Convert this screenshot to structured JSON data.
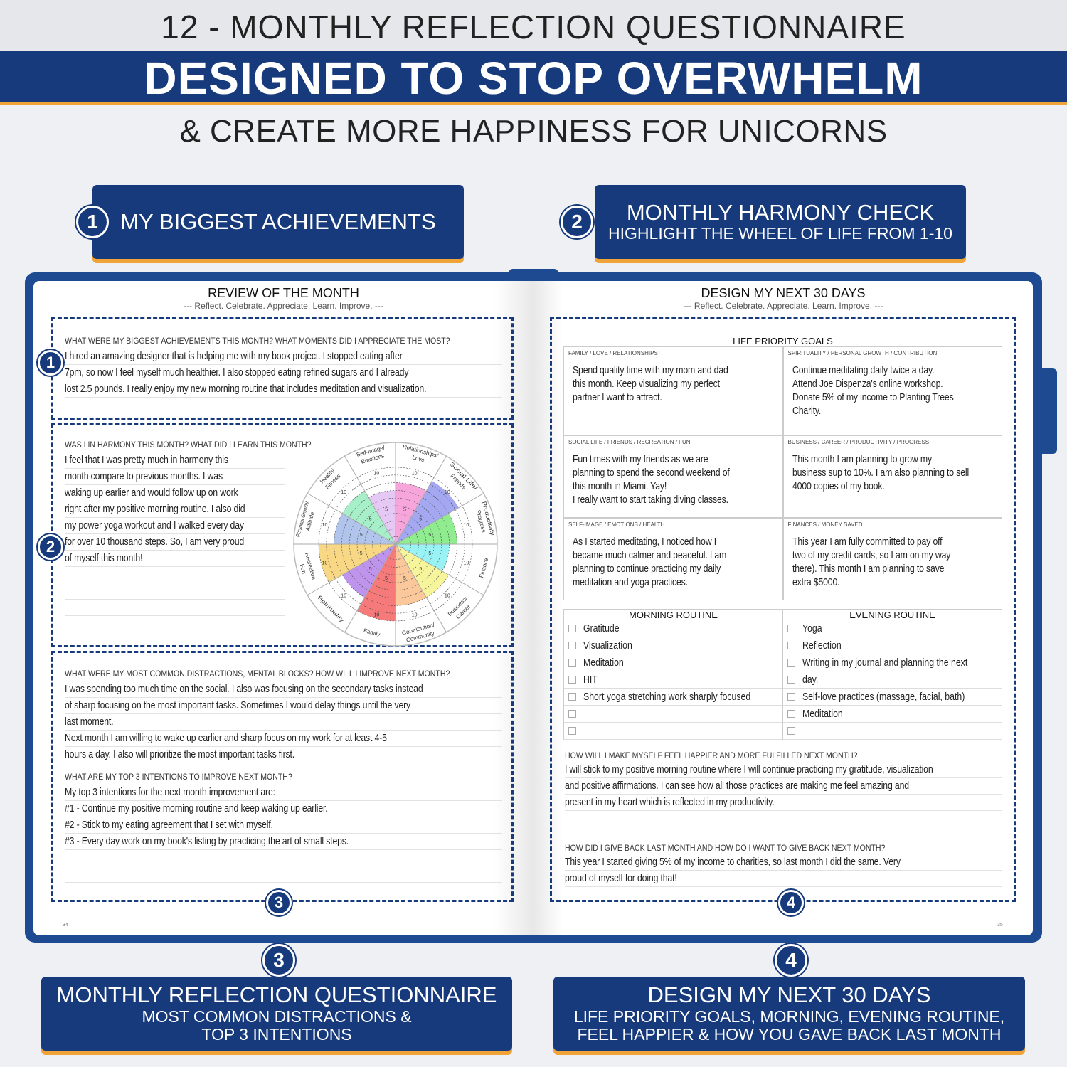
{
  "header": {
    "top_title": "12 - MONTHLY REFLECTION QUESTIONNAIRE",
    "banner": "DESIGNED TO STOP OVERWHELM",
    "subtitle": "& CREATE MORE HAPPINESS FOR UNICORNS"
  },
  "callouts": [
    {
      "number": "1",
      "title": "MY BIGGEST ACHIEVEMENTS"
    },
    {
      "number": "2",
      "title": "MONTHLY HARMONY CHECK",
      "subtitle": "HIGHLIGHT THE WHEEL OF LIFE FROM 1-10"
    },
    {
      "number": "3",
      "title": "MONTHLY REFLECTION QUESTIONNAIRE",
      "subtitle": "MOST COMMON DISTRACTIONS &",
      "subtitle2": "TOP 3 INTENTIONS"
    },
    {
      "number": "4",
      "title": "DESIGN MY NEXT 30 DAYS",
      "subtitle": "LIFE PRIORITY GOALS, MORNING, EVENING ROUTINE,",
      "subtitle2": "FEEL HAPPIER & HOW YOU GAVE BACK LAST MONTH"
    }
  ],
  "left_page": {
    "title": "REVIEW OF THE MONTH",
    "tagline": "--- Reflect. Celebrate. Appreciate. Learn. Improve. ---",
    "page_number": "34",
    "achievements": {
      "question": "WHAT WERE MY BIGGEST ACHIEVEMENTS THIS MONTH? WHAT MOMENTS DID I APPRECIATE THE MOST?",
      "lines": [
        "I hired an amazing designer that is helping me with my book project. I stopped eating after",
        "7pm, so now I feel myself much healthier. I also stopped eating refined sugars and I already",
        "lost 2.5 pounds. I really enjoy my new morning routine that includes meditation and visualization."
      ]
    },
    "harmony": {
      "question": "WAS I IN HARMONY THIS MONTH? WHAT DID I LEARN THIS MONTH?",
      "lines": [
        "I feel that I was pretty much in harmony this",
        "month compare to previous months. I was",
        "waking up earlier and would follow up on work",
        "right after my positive morning routine. I also did",
        "my power yoga workout and I walked every day",
        "for over 10 thousand steps. So, I am very proud",
        "of myself this month!"
      ]
    },
    "distractions": {
      "question": "WHAT WERE MY MOST COMMON DISTRACTIONS, MENTAL BLOCKS? HOW WILL I IMPROVE NEXT MONTH?",
      "lines": [
        "I was spending too much time on the social. I also was focusing on the secondary tasks instead",
        "of sharp focusing on the most important tasks. Sometimes I would delay things until the very",
        "last moment.",
        "Next month I am willing to wake up earlier and sharp focus on my work for at least 4-5",
        "hours a day. I also will prioritize the most important tasks first."
      ]
    },
    "intentions": {
      "question": "WHAT ARE MY TOP 3 INTENTIONS TO IMPROVE NEXT MONTH?",
      "lines": [
        "My top 3 intentions for the next month improvement are:",
        "#1 - Continue my positive morning routine and keep waking up earlier.",
        "#2 - Stick to my eating agreement that I set with myself.",
        "#3 - Every day work on my book's listing by practicing the art of small steps."
      ]
    }
  },
  "wheel": {
    "scale_labels": [
      "5",
      "10"
    ],
    "max": 10,
    "segments": [
      {
        "label": "Relationships/ Love",
        "level": 8,
        "color": "#f7a6dc"
      },
      {
        "label": "Social Life/ Friends",
        "level": 9.5,
        "color": "#a3a8f0"
      },
      {
        "label": "Productivity/ Progress",
        "level": 8,
        "color": "#8fec8f"
      },
      {
        "label": "Finance",
        "level": 7,
        "color": "#99f3f5"
      },
      {
        "label": "Business/ Career",
        "level": 8,
        "color": "#f7f59b"
      },
      {
        "label": "Contribution/ Community",
        "level": 8,
        "color": "#fbc89c"
      },
      {
        "label": "Family",
        "level": 10,
        "color": "#f77a7a"
      },
      {
        "label": "Spirituality",
        "level": 8,
        "color": "#bf94ec"
      },
      {
        "label": "Recreation/ Fun",
        "level": 10,
        "color": "#f8d884"
      },
      {
        "label": "Personal Growth/ Attitude",
        "level": 8,
        "color": "#b1c4ec"
      },
      {
        "label": "Health/ Fitness",
        "level": 8,
        "color": "#a6efc8"
      },
      {
        "label": "Self-Image/ Emotions",
        "level": 7,
        "color": "#e6c8f5"
      }
    ]
  },
  "right_page": {
    "title": "DESIGN MY NEXT 30 DAYS",
    "tagline": "--- Reflect. Celebrate. Appreciate. Learn. Improve. ---",
    "page_number": "35",
    "goals_title": "LIFE PRIORITY GOALS",
    "goals": [
      {
        "label": "FAMILY / LOVE / RELATIONSHIPS",
        "lines": [
          "Spend quality time with my mom and dad",
          "this month. Keep visualizing my perfect",
          "partner I want to attract."
        ]
      },
      {
        "label": "SPIRITUALITY / PERSONAL GROWTH / CONTRIBUTION",
        "lines": [
          "Continue meditating daily twice a day.",
          "Attend Joe Dispenza's online workshop.",
          "Donate 5% of my income to Planting Trees",
          "Charity."
        ]
      },
      {
        "label": "SOCIAL LIFE / FRIENDS / RECREATION / FUN",
        "lines": [
          "Fun times with my friends as we are",
          "planning to spend the second weekend of",
          "this month in Miami. Yay!",
          "I really want to start taking diving classes."
        ]
      },
      {
        "label": "BUSINESS / CAREER / PRODUCTIVITY / PROGRESS",
        "lines": [
          "This month I am planning to grow my",
          "business sup to 10%. I am also planning to sell",
          "4000 copies of my book."
        ]
      },
      {
        "label": "SELF-IMAGE / EMOTIONS / HEALTH",
        "lines": [
          "As I started meditating, I noticed how I",
          "became much calmer and peaceful. I am",
          "planning to continue practicing my daily",
          "meditation and yoga practices."
        ]
      },
      {
        "label": "FINANCES / MONEY SAVED",
        "lines": [
          "This year I am fully committed to pay off",
          "two of my credit cards, so I am on my way",
          "there). This month I am planning to save",
          "extra $5000."
        ]
      }
    ],
    "morning_title": "MORNING ROUTINE",
    "morning": [
      "Gratitude",
      "Visualization",
      "Meditation",
      "HIT",
      "Short yoga stretching work sharply focused",
      "",
      ""
    ],
    "evening_title": "EVENING ROUTINE",
    "evening": [
      "Yoga",
      "Reflection",
      "Writing in my journal and planning the next",
      "day.",
      "Self-love practices (massage, facial, bath)",
      "Meditation",
      ""
    ],
    "happier": {
      "question": "HOW WILL I MAKE MYSELF FEEL HAPPIER AND MORE FULFILLED NEXT MONTH?",
      "lines": [
        "I will stick to my positive morning routine where I will continue practicing my gratitude, visualization",
        "and positive affirmations. I can see how all those practices are making me feel amazing and",
        "present in my heart which is reflected in my productivity."
      ]
    },
    "giveback": {
      "question": "HOW DID I GIVE BACK LAST MONTH AND HOW DO I WANT TO GIVE BACK NEXT MONTH?",
      "lines": [
        "This year I started giving 5% of my income to charities, so last month I did the same. Very",
        "proud of myself for doing that!"
      ]
    }
  },
  "colors": {
    "navy": "#173a7c",
    "orange": "#f0a437",
    "cover": "#1e4a92"
  }
}
